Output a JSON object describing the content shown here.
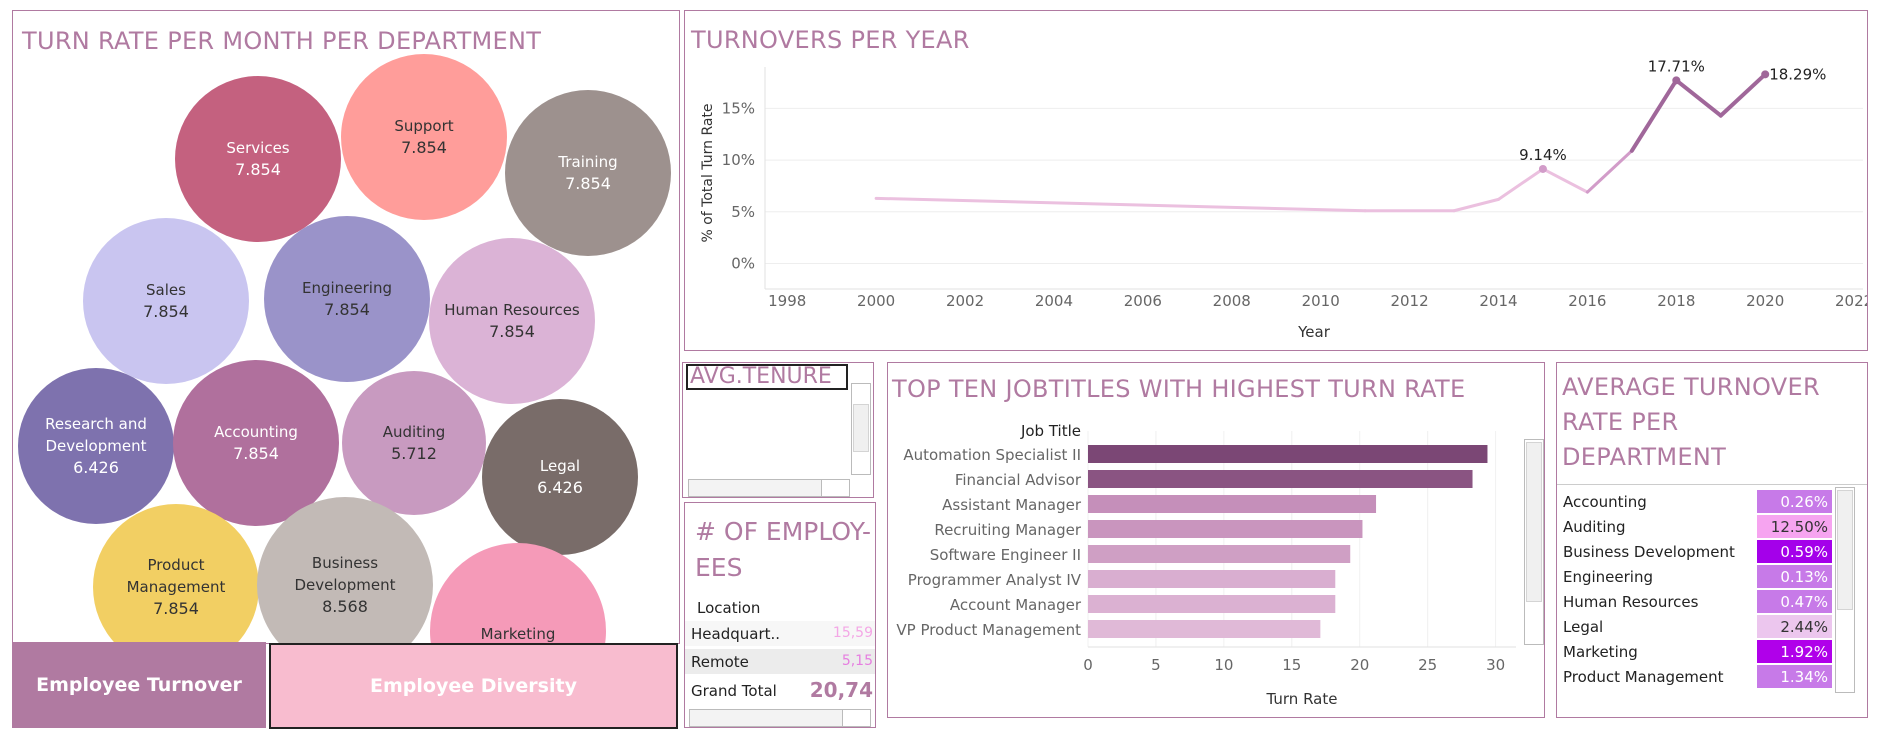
{
  "bubble_panel": {
    "title": "TURN RATE PER MONTH PER DEPARTMENT"
  },
  "line_panel": {
    "title": "TURNOVERS PER YEAR"
  },
  "tenure_panel": {
    "title": "AVG.TENURE"
  },
  "employees_panel": {
    "title_line1": "# OF EMPLOY-",
    "title_line2": "EES",
    "header": "Location",
    "rows": [
      {
        "label": "Headquart..",
        "value": "15,59"
      },
      {
        "label": "Remote",
        "value": "5,15"
      }
    ],
    "total": {
      "label": "Grand Total",
      "value": "20,74"
    }
  },
  "bar_panel": {
    "title": "TOP TEN JOBTITLES WITH HIGHEST TURN RATE"
  },
  "dept_panel": {
    "title_line1": "AVERAGE TURNOVER",
    "title_line2": "RATE PER",
    "title_line3": "DEPARTMENT"
  },
  "nav": {
    "turnover_label": "Employee Turnover",
    "diversity_label": "Employee Diversity"
  },
  "colors": {
    "accent": "#b07aa1",
    "nav_turnover": "#b07aa1",
    "nav_diversity": "#f8bccf",
    "line": "#e8b6d6",
    "line_dark": "#9e5f93"
  },
  "chart_data": [
    {
      "type": "bubble",
      "title": "TURN RATE PER MONTH PER DEPARTMENT",
      "bubbles": [
        {
          "label": "Services",
          "value": "7.854",
          "color": "#c4617f"
        },
        {
          "label": "Support",
          "value": "7.854",
          "color": "#ff9d9a"
        },
        {
          "label": "Training",
          "value": "7.854",
          "color": "#9d918e"
        },
        {
          "label": "Sales",
          "value": "7.854",
          "color": "#c9c5f0"
        },
        {
          "label": "Engineering",
          "value": "7.854",
          "color": "#9a93c9"
        },
        {
          "label": "Human Resources",
          "value": "7.854",
          "color": "#dbb3d6"
        },
        {
          "label": "Research and Development",
          "value": "6.426",
          "color": "#7e72ae"
        },
        {
          "label": "Accounting",
          "value": "7.854",
          "color": "#b0709d"
        },
        {
          "label": "Auditing",
          "value": "5.712",
          "color": "#c89ac0"
        },
        {
          "label": "Legal",
          "value": "6.426",
          "color": "#796c69"
        },
        {
          "label": "Product Management",
          "value": "7.854",
          "color": "#f2cf63"
        },
        {
          "label": "Business Development",
          "value": "8.568",
          "color": "#c2bab6"
        },
        {
          "label": "Marketing",
          "value": "",
          "color": "#f59ab8"
        }
      ]
    },
    {
      "type": "line",
      "title": "TURNOVERS PER YEAR",
      "xlabel": "Year",
      "ylabel": "% of Total Turn Rate",
      "xlim": [
        1997.5,
        2022.2
      ],
      "ylim": [
        -1.5,
        19
      ],
      "xticks": [
        "1998",
        "2000",
        "2002",
        "2004",
        "2006",
        "2008",
        "2010",
        "2012",
        "2014",
        "2016",
        "2018",
        "2020",
        "2022"
      ],
      "yticks": [
        "0%",
        "5%",
        "10%",
        "15%"
      ],
      "points": [
        {
          "x": 2000,
          "y": 6.3
        },
        {
          "x": 2011,
          "y": 5.1
        },
        {
          "x": 2013,
          "y": 5.1
        },
        {
          "x": 2014,
          "y": 6.2
        },
        {
          "x": 2015,
          "y": 9.14
        },
        {
          "x": 2016,
          "y": 6.9
        },
        {
          "x": 2017,
          "y": 10.9
        },
        {
          "x": 2018,
          "y": 17.71
        },
        {
          "x": 2019,
          "y": 14.3
        },
        {
          "x": 2020,
          "y": 18.29
        }
      ],
      "labels": [
        {
          "x": 2015,
          "y": 9.14,
          "text": "9.14%"
        },
        {
          "x": 2018,
          "y": 17.71,
          "text": "17.71%"
        },
        {
          "x": 2020,
          "y": 18.29,
          "text": "18.29%"
        }
      ]
    },
    {
      "type": "bar",
      "title": "TOP TEN JOBTITLES WITH HIGHEST TURN RATE",
      "orientation": "horizontal",
      "category_header": "Job Title",
      "xlabel": "Turn Rate",
      "xlim": [
        0,
        31.5
      ],
      "xticks": [
        "0",
        "5",
        "10",
        "15",
        "20",
        "25",
        "30"
      ],
      "categories": [
        "Automation Specialist II",
        "Financial Advisor",
        "Assistant Manager",
        "Recruiting Manager",
        "Software Engineer II",
        "Programmer Analyst IV",
        "Account Manager",
        "VP Product Management"
      ],
      "values": [
        29.4,
        28.3,
        21.2,
        20.2,
        19.3,
        18.2,
        18.2,
        17.1
      ],
      "colors": [
        "#7b4775",
        "#8a5482",
        "#c58fba",
        "#c995be",
        "#cf9fc4",
        "#d9aed0",
        "#dbb1d2",
        "#e0b9d7"
      ]
    },
    {
      "type": "heatmap",
      "title": "AVERAGE TURNOVER RATE PER DEPARTMENT",
      "categories": [
        "Accounting",
        "Auditing",
        "Business Development",
        "Engineering",
        "Human Resources",
        "Legal",
        "Marketing",
        "Product Management"
      ],
      "values": [
        "0.26%",
        "12.50%",
        "0.59%",
        "0.13%",
        "0.47%",
        "2.44%",
        "1.92%",
        "1.34%"
      ],
      "colors": [
        "#c77ae8",
        "#f6a4f0",
        "#a400ea",
        "#c77ae8",
        "#c77ae8",
        "#ecc6ee",
        "#b000ea",
        "#c77ae8"
      ],
      "text_colors": [
        "#ffffff",
        "#333333",
        "#ffffff",
        "#ffffff",
        "#ffffff",
        "#333333",
        "#ffffff",
        "#ffffff"
      ]
    }
  ]
}
